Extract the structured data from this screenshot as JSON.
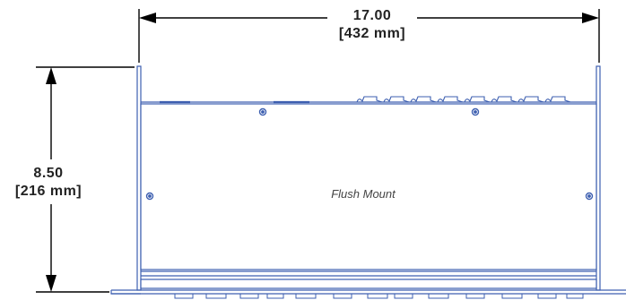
{
  "dimensions": {
    "width": {
      "value": "17.00",
      "metric": "[432 mm]"
    },
    "height": {
      "value": "8.50",
      "metric": "[216 mm]"
    }
  },
  "label": "Flush Mount",
  "colors": {
    "chassis_line": "#3d5fb0",
    "chassis_fill": "#ffffff",
    "dimension_line": "#000000",
    "text": "#222222"
  }
}
